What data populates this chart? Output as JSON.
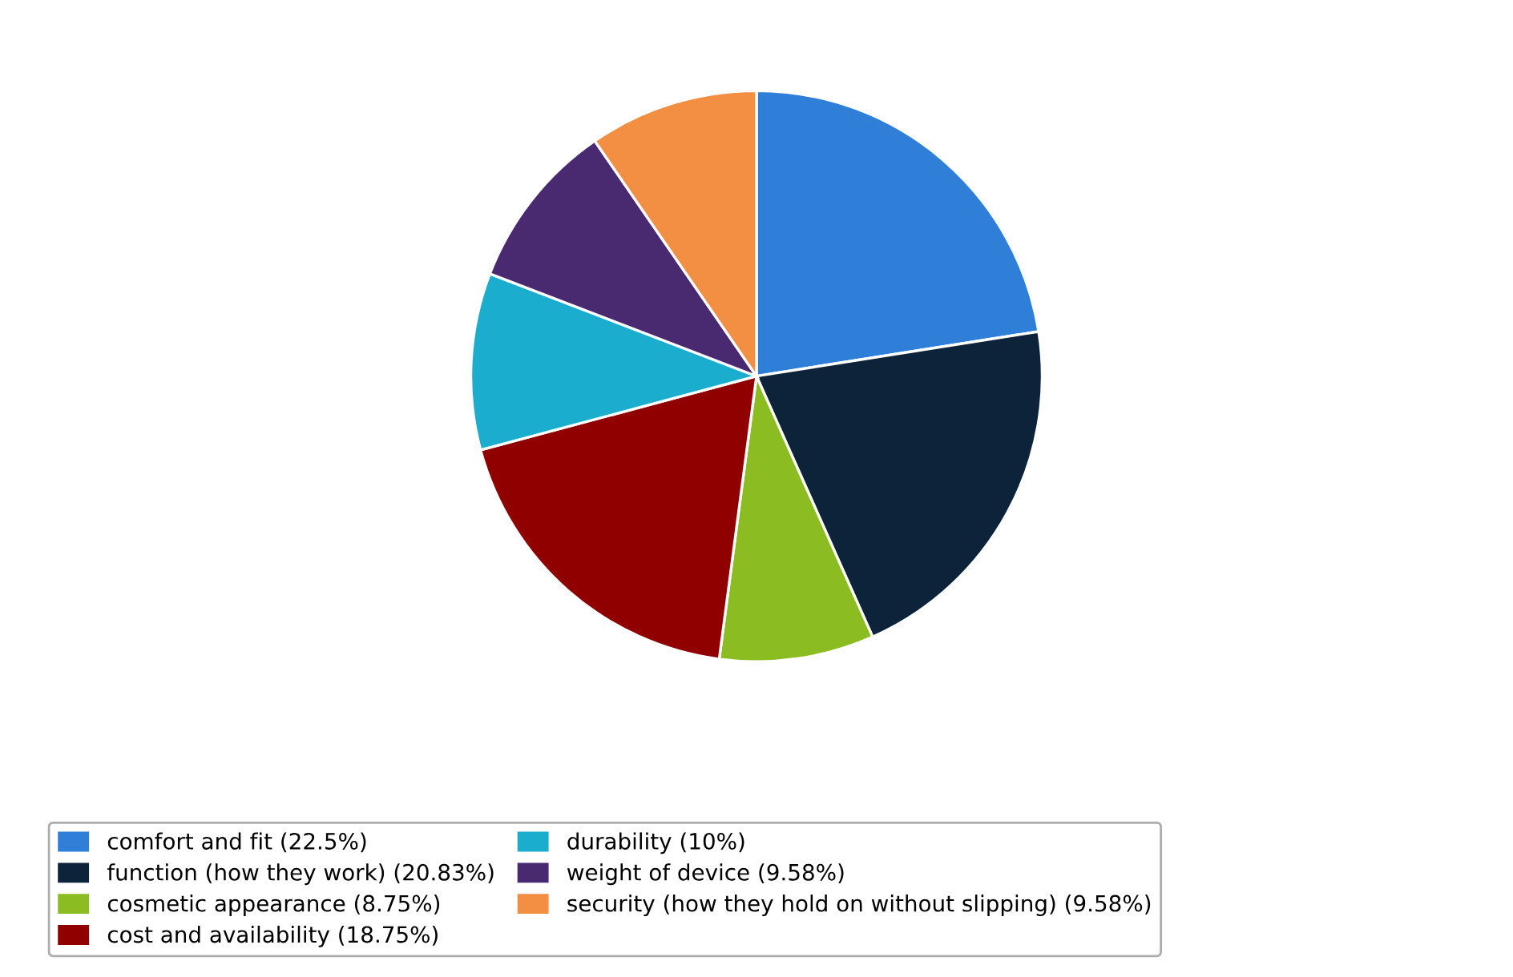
{
  "chart_data": {
    "type": "pie",
    "categories": [
      "comfort and fit (22.5%)",
      "function (how they work) (20.83%)",
      "cosmetic appearance (8.75%)",
      "cost and availability (18.75%)",
      "durability (10%)",
      "weight of device (9.58%)",
      "security (how they hold on without slipping) (9.58%)"
    ],
    "values": [
      22.5,
      20.83,
      8.75,
      18.75,
      10,
      9.58,
      9.58
    ],
    "colors": [
      "#2f7ed8",
      "#0d233a",
      "#8bbc21",
      "#910000",
      "#1aadce",
      "#492970",
      "#f28f43"
    ],
    "legend": "bottom"
  }
}
